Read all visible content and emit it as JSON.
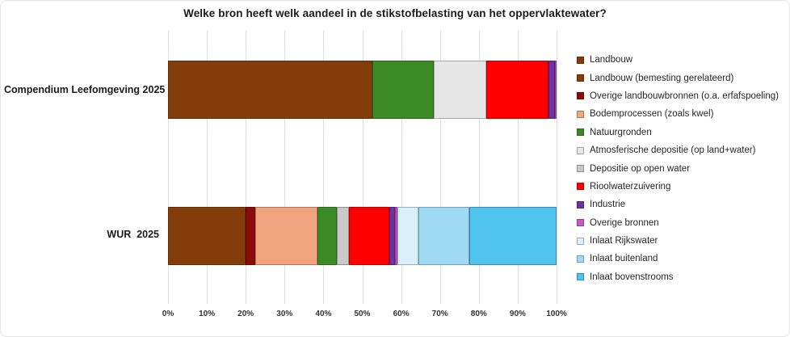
{
  "title": "Welke bron heeft welk aandeel in de stikstofbelasting van het oppervlaktewater?",
  "categories": [
    "Compendium Leefomgeving 2025",
    "WUR  2025"
  ],
  "x_axis": {
    "ticks": [
      "0%",
      "10%",
      "20%",
      "30%",
      "40%",
      "50%",
      "60%",
      "70%",
      "80%",
      "90%",
      "100%"
    ]
  },
  "colors": {
    "gridline": "#dedede",
    "title_text": "#1a1a1a",
    "axis_text": "#333333",
    "legend_text": "#262626"
  },
  "chart_data": {
    "type": "bar",
    "orientation": "horizontal-stacked",
    "title": "Welke bron heeft welk aandeel in de stikstofbelasting van het oppervlaktewater?",
    "categories": [
      "Compendium Leefomgeving 2025",
      "WUR  2025"
    ],
    "xlabel": "",
    "ylabel": "",
    "xlim": [
      0,
      100
    ],
    "x_unit": "%",
    "grid": "vertical",
    "legend_position": "right",
    "series": [
      {
        "name": "Landbouw",
        "color": "#843C0B",
        "values": [
          52.5,
          0
        ]
      },
      {
        "name": "Landbouw (bemesting gerelateerd)",
        "color": "#843C0B",
        "values": [
          0,
          20
        ]
      },
      {
        "name": "Overige landbouwbronnen (o.a. erfafspoeling)",
        "color": "#8B0A0A",
        "values": [
          0,
          2.5
        ]
      },
      {
        "name": "Bodemprocessen (zoals kwel)",
        "color": "#F2A47E",
        "values": [
          0,
          16
        ]
      },
      {
        "name": "Natuurgronden",
        "color": "#3B8A26",
        "values": [
          16,
          5
        ]
      },
      {
        "name": "Atmosferische depositie (op land+water)",
        "color": "#E7E6E6",
        "values": [
          13.5,
          0
        ]
      },
      {
        "name": "Depositie op open water",
        "color": "#C9C9C9",
        "values": [
          0,
          3
        ]
      },
      {
        "name": "Rioolwaterzuivering",
        "color": "#FF0000",
        "values": [
          16,
          10.5
        ]
      },
      {
        "name": "Industrie",
        "color": "#7030A0",
        "values": [
          1.5,
          1.5
        ]
      },
      {
        "name": "Overige bronnen",
        "color": "#C55BC5",
        "values": [
          0.5,
          0.5
        ]
      },
      {
        "name": "Inlaat Rijkswater",
        "color": "#D9F0FA",
        "values": [
          0,
          5.5
        ]
      },
      {
        "name": "Inlaat buitenland",
        "color": "#9FD9F3",
        "values": [
          0,
          13
        ]
      },
      {
        "name": "Inlaat bovenstrooms",
        "color": "#4FC3EE",
        "values": [
          0,
          22.5
        ]
      }
    ]
  }
}
